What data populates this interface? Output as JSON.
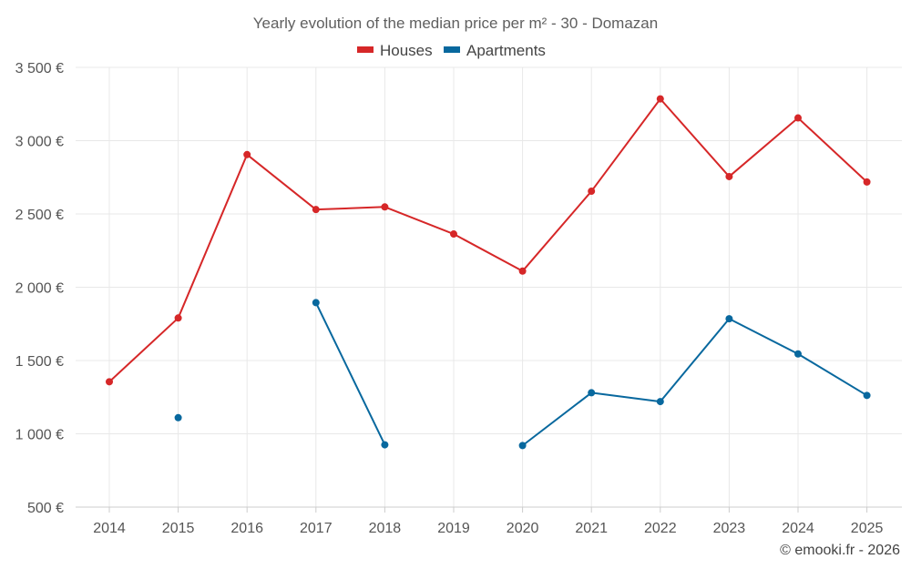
{
  "chart_data": {
    "type": "line",
    "title": "Yearly evolution of the median price per m² - 30 - Domazan",
    "xlabel": "",
    "ylabel": "",
    "categories": [
      "2014",
      "2015",
      "2016",
      "2017",
      "2018",
      "2019",
      "2020",
      "2021",
      "2022",
      "2023",
      "2024",
      "2025"
    ],
    "ylim": [
      500,
      3500
    ],
    "yticks": [
      500,
      1000,
      1500,
      2000,
      2500,
      3000,
      3500
    ],
    "ytick_labels": [
      "500 €",
      "1 000 €",
      "1 500 €",
      "2 000 €",
      "2 500 €",
      "3 000 €",
      "3 500 €"
    ],
    "grid": true,
    "legend_position": "top-center",
    "series": [
      {
        "name": "Houses",
        "color": "#d62728",
        "values": [
          1355,
          1790,
          2905,
          2530,
          2548,
          2363,
          2110,
          2655,
          3285,
          2755,
          3155,
          2718
        ]
      },
      {
        "name": "Apartments",
        "color": "#08689e",
        "values": [
          null,
          1110,
          null,
          1895,
          925,
          null,
          920,
          1280,
          1220,
          1785,
          1545,
          1262
        ]
      }
    ]
  },
  "footer": "© emooki.fr - 2026"
}
